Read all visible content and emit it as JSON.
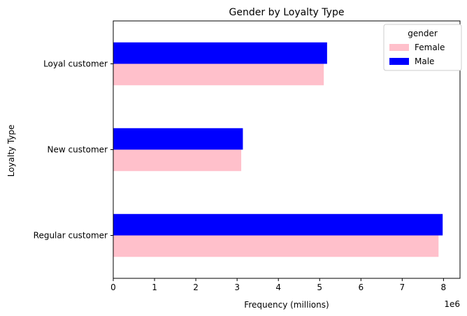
{
  "chart_data": {
    "type": "bar",
    "orientation": "horizontal",
    "title": "Gender by Loyalty Type",
    "xlabel": "Frequency (millions)",
    "ylabel": "Loyalty Type",
    "x_offset_text": "1e6",
    "xlim": [
      0,
      8400000
    ],
    "xticks": [
      0,
      1000000,
      2000000,
      3000000,
      4000000,
      5000000,
      6000000,
      7000000,
      8000000
    ],
    "xtick_labels": [
      "0",
      "1",
      "2",
      "3",
      "4",
      "5",
      "6",
      "7",
      "8"
    ],
    "categories": [
      "Loyal customer",
      "New customer",
      "Regular customer"
    ],
    "series": [
      {
        "name": "Female",
        "color": "#ffc0cb",
        "values": [
          5100000,
          3100000,
          7880000
        ]
      },
      {
        "name": "Male",
        "color": "#0000ff",
        "values": [
          5180000,
          3140000,
          7980000
        ]
      }
    ],
    "legend": {
      "title": "gender",
      "position": "top-right"
    },
    "grid": false
  }
}
